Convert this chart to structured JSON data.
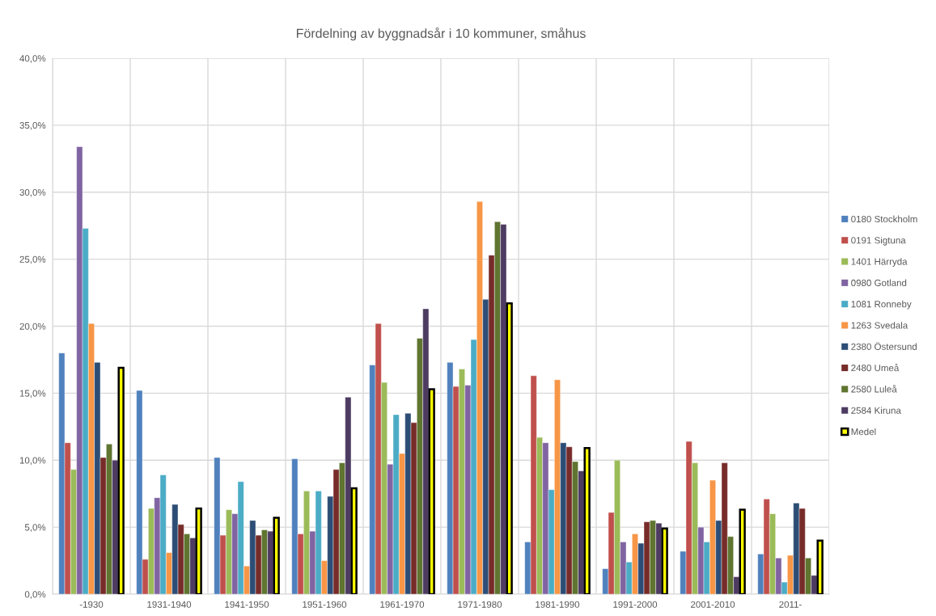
{
  "chart_data": {
    "type": "bar",
    "title": "Fördelning av byggnadsår i 10 kommuner, småhus",
    "categories": [
      "-1930",
      "1931-1940",
      "1941-1950",
      "1951-1960",
      "1961-1970",
      "1971-1980",
      "1981-1990",
      "1991-2000",
      "2001-2010",
      "2011-"
    ],
    "series": [
      {
        "name": "0180 Stockholm",
        "color": "#4f81bd",
        "values": [
          18.0,
          15.2,
          10.2,
          10.1,
          17.1,
          17.3,
          3.9,
          1.9,
          3.2,
          3.0
        ]
      },
      {
        "name": "0191 Sigtuna",
        "color": "#c0504d",
        "values": [
          11.3,
          2.6,
          4.4,
          4.5,
          20.2,
          15.5,
          16.3,
          6.1,
          11.4,
          7.1
        ]
      },
      {
        "name": "1401 Härryda",
        "color": "#9bbb59",
        "values": [
          9.3,
          6.4,
          6.3,
          7.7,
          15.8,
          16.8,
          11.7,
          10.0,
          9.8,
          6.0
        ]
      },
      {
        "name": "0980 Gotland",
        "color": "#8064a2",
        "values": [
          33.4,
          7.2,
          6.0,
          4.7,
          9.7,
          15.6,
          11.3,
          3.9,
          5.0,
          2.7
        ]
      },
      {
        "name": "1081 Ronneby",
        "color": "#4bacc6",
        "values": [
          27.3,
          8.9,
          8.4,
          7.7,
          13.4,
          19.0,
          7.8,
          2.4,
          3.9,
          0.9
        ]
      },
      {
        "name": "1263 Svedala",
        "color": "#f79646",
        "values": [
          20.2,
          3.1,
          2.1,
          2.5,
          10.5,
          29.3,
          16.0,
          4.5,
          8.5,
          2.9
        ]
      },
      {
        "name": "2380 Östersund",
        "color": "#2c4d75",
        "values": [
          17.3,
          6.7,
          5.5,
          7.3,
          13.5,
          22.0,
          11.3,
          3.8,
          5.5,
          6.8
        ]
      },
      {
        "name": "2480 Umeå",
        "color": "#772c2a",
        "values": [
          10.2,
          5.2,
          4.4,
          9.3,
          12.8,
          25.3,
          11.0,
          5.4,
          9.8,
          6.4
        ]
      },
      {
        "name": "2580 Luleå",
        "color": "#5f7530",
        "values": [
          11.2,
          4.5,
          4.8,
          9.8,
          19.1,
          27.8,
          9.9,
          5.5,
          4.3,
          2.7
        ]
      },
      {
        "name": "2584 Kiruna",
        "color": "#4d3b62",
        "values": [
          10.0,
          4.2,
          4.7,
          14.7,
          21.3,
          27.6,
          9.2,
          5.3,
          1.3,
          1.4
        ]
      },
      {
        "name": "Medel",
        "color": "#ffff00",
        "values": [
          16.9,
          6.4,
          5.7,
          7.9,
          15.3,
          21.7,
          10.9,
          4.9,
          6.3,
          4.0
        ]
      }
    ],
    "ylim": [
      0,
      40
    ],
    "yticks": [
      {
        "value": 0,
        "label": "0,0%"
      },
      {
        "value": 5,
        "label": "5,0%"
      },
      {
        "value": 10,
        "label": "10,0%"
      },
      {
        "value": 15,
        "label": "15,0%"
      },
      {
        "value": 20,
        "label": "20,0%"
      },
      {
        "value": 25,
        "label": "25,0%"
      },
      {
        "value": 30,
        "label": "30,0%"
      },
      {
        "value": 35,
        "label": "35,0%"
      },
      {
        "value": 40,
        "label": "40,0%"
      }
    ],
    "grid": true,
    "legend": "right"
  }
}
